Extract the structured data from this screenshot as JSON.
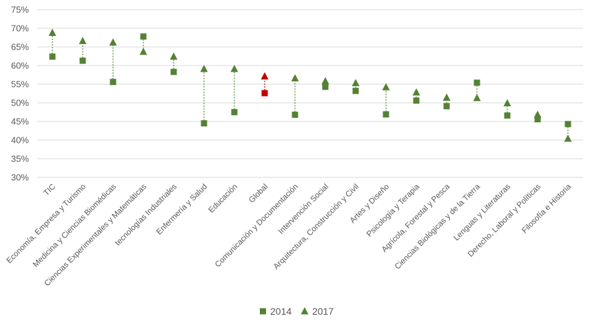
{
  "chart_data": {
    "type": "scatter",
    "title": "",
    "xlabel": "",
    "ylabel": "",
    "ylim": [
      0.3,
      0.75
    ],
    "yticks": [
      "30%",
      "35%",
      "40%",
      "45%",
      "50%",
      "55%",
      "60%",
      "65%",
      "70%",
      "75%"
    ],
    "grid": true,
    "legend_position": "bottom",
    "categories": [
      "TIC",
      "Economía, Empresa y Turismo",
      "Medicina y Ciencias Biomédicas",
      "Ciencias Experimentales y Matemáticas",
      "tecnologías Industriales",
      "Enfermería y Salud",
      "Educación",
      "Global",
      "Comunicación y Documentación",
      "Intervención Social",
      "Arquitectura, Construcción y Civil",
      "Artes y Diseño",
      "Psicología y Terapia",
      "Agrícola, Forestal y Pesca",
      "Ciencias Biológicas y de la Tierra",
      "Lenguas y Literaturas",
      "Derecho, Laboral y Políticas",
      "Filosofía e Historia"
    ],
    "highlight_category": "Global",
    "series": [
      {
        "name": "2014",
        "marker": "square",
        "values": [
          0.624,
          0.613,
          0.556,
          0.678,
          0.583,
          0.445,
          0.475,
          0.526,
          0.468,
          0.543,
          0.532,
          0.469,
          0.506,
          0.491,
          0.554,
          0.466,
          0.456,
          0.443
        ]
      },
      {
        "name": "2017",
        "marker": "triangle",
        "values": [
          0.688,
          0.666,
          0.662,
          0.637,
          0.624,
          0.591,
          0.591,
          0.571,
          0.566,
          0.558,
          0.553,
          0.542,
          0.528,
          0.514,
          0.513,
          0.499,
          0.468,
          0.404
        ]
      }
    ],
    "colors": {
      "series": "#548235",
      "highlight": "#c00000"
    }
  }
}
